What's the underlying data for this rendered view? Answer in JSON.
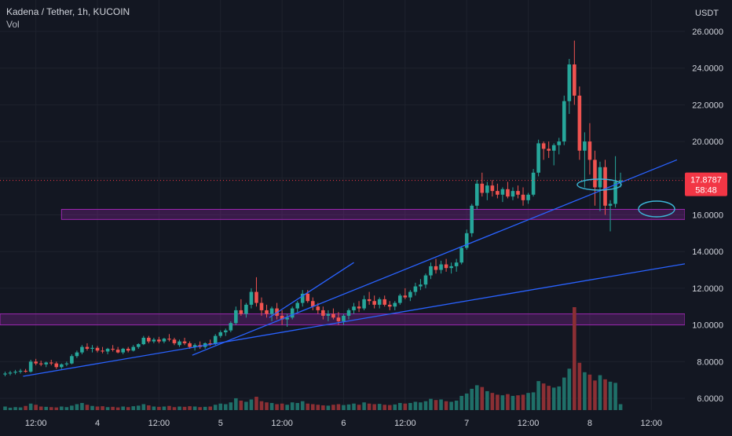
{
  "header": {
    "symbol_line": "Kadena / Tether, 1h, KUCOIN",
    "volume_label": "Vol"
  },
  "colors": {
    "background": "#131722",
    "grid": "#1e222d",
    "up": "#26a69a",
    "down": "#ef5350",
    "volume_up": "#1f6f68",
    "volume_down": "#8b2f34",
    "zone": "#9c27b0",
    "trendline": "#2962ff",
    "price_label_bg": "#f23645",
    "axis_text": "#d1d4dc",
    "annotation": "#3cb4d6"
  },
  "chart_data": {
    "type": "candlestick",
    "quote_unit": "USDT",
    "y_ticks": [
      "26.0000",
      "24.0000",
      "22.0000",
      "20.0000",
      "18.0000",
      "16.0000",
      "14.0000",
      "12.0000",
      "10.0000",
      "8.0000",
      "6.0000"
    ],
    "x_ticks": [
      {
        "label": "12:00",
        "index": 6
      },
      {
        "label": "4",
        "index": 18
      },
      {
        "label": "12:00",
        "index": 30
      },
      {
        "label": "5",
        "index": 42
      },
      {
        "label": "12:00",
        "index": 54
      },
      {
        "label": "6",
        "index": 66
      },
      {
        "label": "12:00",
        "index": 78
      },
      {
        "label": "7",
        "index": 90
      },
      {
        "label": "12:00",
        "index": 102
      },
      {
        "label": "8",
        "index": 114
      },
      {
        "label": "12:00",
        "index": 126
      }
    ],
    "current_price": "17.8787",
    "countdown": "58:48",
    "current_price_value": 17.88,
    "candles": [
      [
        7.3,
        7.45,
        7.2,
        7.35
      ],
      [
        7.35,
        7.5,
        7.25,
        7.4
      ],
      [
        7.4,
        7.55,
        7.3,
        7.45
      ],
      [
        7.45,
        7.6,
        7.35,
        7.5
      ],
      [
        7.5,
        7.6,
        7.4,
        7.45
      ],
      [
        7.45,
        8.1,
        7.4,
        8.0
      ],
      [
        8.0,
        8.15,
        7.8,
        7.9
      ],
      [
        7.9,
        8.05,
        7.75,
        7.85
      ],
      [
        7.85,
        8.0,
        7.7,
        7.95
      ],
      [
        7.95,
        8.1,
        7.8,
        7.9
      ],
      [
        7.9,
        8.0,
        7.6,
        7.7
      ],
      [
        7.7,
        7.9,
        7.6,
        7.85
      ],
      [
        7.85,
        8.0,
        7.75,
        7.9
      ],
      [
        7.9,
        8.4,
        7.85,
        8.3
      ],
      [
        8.3,
        8.6,
        8.2,
        8.5
      ],
      [
        8.5,
        8.9,
        8.4,
        8.8
      ],
      [
        8.8,
        9.0,
        8.6,
        8.7
      ],
      [
        8.7,
        8.9,
        8.5,
        8.75
      ],
      [
        8.75,
        8.85,
        8.5,
        8.6
      ],
      [
        8.6,
        8.8,
        8.45,
        8.55
      ],
      [
        8.55,
        8.75,
        8.4,
        8.7
      ],
      [
        8.7,
        8.9,
        8.55,
        8.65
      ],
      [
        8.65,
        8.8,
        8.45,
        8.5
      ],
      [
        8.5,
        8.75,
        8.4,
        8.7
      ],
      [
        8.7,
        8.8,
        8.5,
        8.6
      ],
      [
        8.6,
        8.9,
        8.55,
        8.8
      ],
      [
        8.8,
        9.0,
        8.7,
        8.95
      ],
      [
        8.95,
        9.4,
        8.9,
        9.3
      ],
      [
        9.3,
        9.4,
        9.0,
        9.1
      ],
      [
        9.1,
        9.3,
        9.0,
        9.2
      ],
      [
        9.2,
        9.35,
        9.0,
        9.1
      ],
      [
        9.1,
        9.3,
        9.0,
        9.25
      ],
      [
        9.25,
        9.5,
        9.1,
        9.2
      ],
      [
        9.2,
        9.3,
        8.9,
        9.0
      ],
      [
        8.9,
        9.2,
        8.8,
        9.1
      ],
      [
        9.1,
        9.3,
        8.9,
        9.0
      ],
      [
        9.0,
        9.1,
        8.7,
        8.8
      ],
      [
        8.8,
        9.0,
        8.6,
        8.9
      ],
      [
        8.9,
        9.1,
        8.7,
        8.8
      ],
      [
        8.8,
        9.05,
        8.7,
        9.0
      ],
      [
        9.0,
        9.2,
        8.85,
        8.95
      ],
      [
        8.95,
        9.5,
        8.9,
        9.4
      ],
      [
        9.4,
        9.7,
        9.3,
        9.6
      ],
      [
        9.6,
        9.8,
        9.4,
        9.7
      ],
      [
        9.7,
        10.2,
        9.6,
        10.1
      ],
      [
        10.1,
        11.0,
        10.0,
        10.8
      ],
      [
        10.8,
        11.4,
        10.5,
        10.6
      ],
      [
        10.6,
        11.2,
        10.4,
        11.1
      ],
      [
        11.1,
        12.0,
        10.9,
        11.8
      ],
      [
        11.8,
        12.6,
        11.0,
        11.2
      ],
      [
        11.2,
        11.5,
        10.5,
        10.8
      ],
      [
        10.8,
        11.1,
        10.4,
        10.6
      ],
      [
        10.6,
        11.0,
        10.2,
        10.9
      ],
      [
        10.9,
        11.2,
        10.3,
        10.5
      ],
      [
        10.5,
        10.8,
        10.0,
        10.3
      ],
      [
        10.3,
        10.6,
        9.9,
        10.4
      ],
      [
        10.4,
        11.0,
        10.3,
        10.9
      ],
      [
        10.9,
        11.3,
        10.7,
        11.2
      ],
      [
        11.2,
        11.9,
        11.0,
        11.7
      ],
      [
        11.7,
        11.9,
        11.2,
        11.3
      ],
      [
        11.3,
        11.5,
        10.8,
        11.0
      ],
      [
        11.0,
        11.2,
        10.6,
        10.8
      ],
      [
        10.8,
        11.0,
        10.3,
        10.5
      ],
      [
        10.5,
        10.8,
        10.2,
        10.6
      ],
      [
        10.6,
        10.9,
        10.3,
        10.4
      ],
      [
        10.4,
        10.7,
        10.0,
        10.2
      ],
      [
        10.2,
        10.6,
        10.0,
        10.5
      ],
      [
        10.5,
        10.9,
        10.3,
        10.8
      ],
      [
        10.8,
        11.2,
        10.6,
        11.0
      ],
      [
        11.0,
        11.3,
        10.7,
        10.9
      ],
      [
        10.9,
        11.6,
        10.8,
        11.4
      ],
      [
        11.4,
        11.8,
        11.1,
        11.3
      ],
      [
        11.3,
        11.6,
        10.9,
        11.1
      ],
      [
        11.1,
        11.5,
        10.9,
        11.4
      ],
      [
        11.4,
        11.6,
        11.0,
        11.1
      ],
      [
        11.1,
        11.3,
        10.8,
        11.0
      ],
      [
        11.0,
        11.3,
        10.8,
        11.2
      ],
      [
        11.2,
        11.7,
        11.1,
        11.6
      ],
      [
        11.6,
        12.0,
        11.4,
        11.5
      ],
      [
        11.5,
        11.9,
        11.3,
        11.8
      ],
      [
        11.8,
        12.3,
        11.6,
        12.1
      ],
      [
        12.1,
        12.5,
        11.9,
        12.2
      ],
      [
        12.2,
        12.8,
        12.0,
        12.7
      ],
      [
        12.7,
        13.4,
        12.5,
        13.2
      ],
      [
        13.2,
        13.6,
        12.8,
        13.0
      ],
      [
        13.0,
        13.5,
        12.8,
        13.3
      ],
      [
        13.3,
        13.6,
        12.9,
        13.1
      ],
      [
        13.1,
        13.4,
        12.8,
        13.2
      ],
      [
        13.2,
        13.6,
        12.9,
        13.4
      ],
      [
        13.4,
        14.3,
        13.3,
        14.2
      ],
      [
        14.2,
        15.2,
        14.1,
        15.0
      ],
      [
        15.0,
        16.6,
        14.8,
        16.5
      ],
      [
        16.5,
        17.9,
        16.3,
        17.7
      ],
      [
        17.7,
        18.3,
        17.0,
        17.2
      ],
      [
        17.2,
        17.8,
        16.8,
        17.6
      ],
      [
        17.6,
        17.9,
        17.0,
        17.3
      ],
      [
        17.3,
        17.7,
        16.9,
        17.1
      ],
      [
        17.1,
        17.5,
        16.7,
        17.4
      ],
      [
        17.4,
        17.8,
        16.9,
        17.0
      ],
      [
        17.0,
        17.5,
        16.8,
        17.3
      ],
      [
        17.3,
        17.6,
        16.9,
        17.1
      ],
      [
        17.1,
        17.5,
        16.5,
        16.8
      ],
      [
        16.8,
        17.2,
        16.6,
        17.1
      ],
      [
        17.1,
        18.5,
        17.0,
        18.3
      ],
      [
        18.3,
        20.1,
        18.1,
        19.9
      ],
      [
        19.9,
        20.0,
        19.0,
        19.6
      ],
      [
        19.6,
        20.0,
        19.1,
        19.5
      ],
      [
        19.5,
        19.9,
        18.7,
        19.8
      ],
      [
        19.8,
        20.2,
        19.3,
        20.0
      ],
      [
        20.0,
        22.5,
        19.8,
        22.2
      ],
      [
        22.2,
        24.5,
        21.5,
        24.2
      ],
      [
        24.2,
        25.5,
        22.0,
        22.5
      ],
      [
        22.5,
        23.0,
        19.0,
        19.5
      ],
      [
        19.5,
        20.5,
        17.5,
        20.0
      ],
      [
        20.0,
        21.0,
        18.2,
        19.0
      ],
      [
        19.0,
        19.5,
        16.5,
        17.5
      ],
      [
        17.5,
        18.9,
        16.2,
        18.6
      ],
      [
        18.6,
        19.0,
        16.0,
        16.5
      ],
      [
        16.5,
        16.8,
        15.1,
        16.6
      ],
      [
        16.6,
        19.2,
        16.4,
        17.8
      ],
      [
        17.8,
        18.3,
        17.5,
        17.88
      ]
    ],
    "volume": [
      12,
      8,
      10,
      9,
      14,
      22,
      18,
      12,
      11,
      10,
      9,
      12,
      10,
      15,
      20,
      24,
      18,
      14,
      12,
      13,
      10,
      11,
      9,
      12,
      10,
      13,
      15,
      20,
      16,
      12,
      11,
      12,
      14,
      10,
      12,
      11,
      13,
      12,
      10,
      11,
      12,
      18,
      22,
      20,
      26,
      40,
      32,
      28,
      36,
      45,
      30,
      26,
      24,
      20,
      22,
      18,
      26,
      24,
      30,
      22,
      20,
      18,
      16,
      15,
      18,
      20,
      17,
      19,
      22,
      18,
      26,
      22,
      20,
      21,
      18,
      17,
      19,
      24,
      22,
      24,
      28,
      26,
      30,
      38,
      34,
      36,
      30,
      28,
      32,
      48,
      56,
      72,
      84,
      78,
      64,
      58,
      52,
      50,
      54,
      48,
      50,
      52,
      58,
      60,
      98,
      90,
      82,
      76,
      80,
      110,
      140,
      348,
      160,
      128,
      120,
      100,
      118,
      104,
      96,
      92,
      20
    ],
    "zones": [
      {
        "low": 15.75,
        "high": 16.3,
        "from_index": 11,
        "to_index": 999
      },
      {
        "low": 10.0,
        "high": 10.6,
        "from_index": -5,
        "to_index": 999
      }
    ],
    "trendlines": [
      {
        "p1": {
          "i": 3.5,
          "v": 7.2
        },
        "p2": {
          "i": 134,
          "v": 13.4
        }
      },
      {
        "p1": {
          "i": 36.5,
          "v": 8.35
        },
        "p2": {
          "i": 131,
          "v": 19.0
        }
      },
      {
        "p1": {
          "i": 51.5,
          "v": 10.4
        },
        "p2": {
          "i": 68,
          "v": 13.4
        }
      }
    ]
  }
}
